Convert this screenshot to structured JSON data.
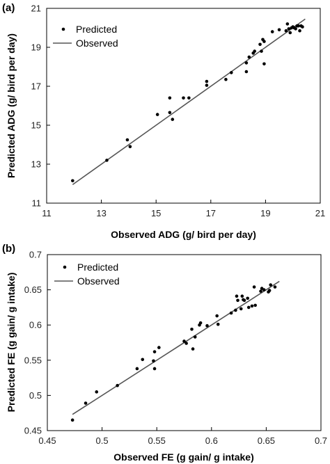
{
  "chart_data": [
    {
      "panel": "(a)",
      "type": "scatter",
      "xlabel": "Observed ADG (g/ bird per day)",
      "ylabel": "Predicted ADG (g/ bird per day)",
      "xlim": [
        11,
        21
      ],
      "ylim": [
        11,
        21
      ],
      "xticks": [
        "11",
        "13",
        "15",
        "17",
        "19",
        "21"
      ],
      "yticks": [
        "11",
        "13",
        "15",
        "17",
        "19",
        "21"
      ],
      "legend": {
        "position": "top-left",
        "entries": [
          "Predicted",
          "Observed"
        ]
      },
      "series": [
        {
          "name": "Predicted",
          "kind": "points",
          "x": [
            11.95,
            13.2,
            13.95,
            14.05,
            15.05,
            15.5,
            15.5,
            15.6,
            16.0,
            16.2,
            16.85,
            16.85,
            17.55,
            17.75,
            18.3,
            18.3,
            18.4,
            18.55,
            18.6,
            18.8,
            18.85,
            18.9,
            18.95,
            18.95,
            19.25,
            19.5,
            19.75,
            19.8,
            19.85,
            19.9,
            19.95,
            20.0,
            20.05,
            20.1,
            20.15,
            20.2,
            20.25,
            20.3,
            20.35
          ],
          "y": [
            12.15,
            13.2,
            14.25,
            13.9,
            15.55,
            15.65,
            16.4,
            15.3,
            16.4,
            16.4,
            17.05,
            17.25,
            17.35,
            17.7,
            18.2,
            17.75,
            18.5,
            18.7,
            18.8,
            19.15,
            18.8,
            19.4,
            19.3,
            18.15,
            19.8,
            19.9,
            19.85,
            20.2,
            19.95,
            19.75,
            20.0,
            20.05,
            20.0,
            19.95,
            20.1,
            20.1,
            19.85,
            20.1,
            20.05
          ]
        },
        {
          "name": "Observed",
          "kind": "line",
          "x": [
            11.95,
            20.45
          ],
          "y": [
            11.95,
            20.45
          ]
        }
      ]
    },
    {
      "panel": "(b)",
      "type": "scatter",
      "xlabel": "Observed FE (g gain/ g intake)",
      "ylabel": "Predicted FE (g gain/ g intake)",
      "xlim": [
        0.45,
        0.7
      ],
      "ylim": [
        0.45,
        0.7
      ],
      "xticks": [
        "0.45",
        "0.5",
        "0.55",
        "0.6",
        "0.65",
        "0.7"
      ],
      "yticks": [
        "0.45",
        "0.5",
        "0.55",
        "0.6",
        "0.65",
        "0.7"
      ],
      "legend": {
        "position": "top-left",
        "entries": [
          "Predicted",
          "Observed"
        ]
      },
      "series": [
        {
          "name": "Predicted",
          "kind": "points",
          "x": [
            0.473,
            0.485,
            0.495,
            0.514,
            0.532,
            0.537,
            0.547,
            0.548,
            0.548,
            0.552,
            0.575,
            0.577,
            0.582,
            0.583,
            0.585,
            0.589,
            0.59,
            0.596,
            0.605,
            0.606,
            0.618,
            0.622,
            0.623,
            0.624,
            0.627,
            0.628,
            0.629,
            0.63,
            0.633,
            0.634,
            0.637,
            0.639,
            0.64,
            0.645,
            0.646,
            0.648,
            0.652,
            0.653,
            0.654,
            0.658
          ],
          "y": [
            0.465,
            0.489,
            0.505,
            0.514,
            0.538,
            0.551,
            0.549,
            0.538,
            0.562,
            0.568,
            0.577,
            0.574,
            0.594,
            0.566,
            0.583,
            0.6,
            0.603,
            0.599,
            0.613,
            0.601,
            0.617,
            0.621,
            0.641,
            0.635,
            0.623,
            0.641,
            0.636,
            0.635,
            0.638,
            0.625,
            0.627,
            0.654,
            0.628,
            0.648,
            0.652,
            0.65,
            0.647,
            0.649,
            0.657,
            0.654
          ]
        },
        {
          "name": "Observed",
          "kind": "line",
          "x": [
            0.473,
            0.662
          ],
          "y": [
            0.473,
            0.662
          ]
        }
      ]
    }
  ]
}
